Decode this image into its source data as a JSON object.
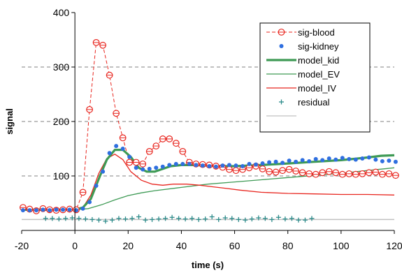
{
  "chart_data": {
    "type": "line",
    "title": "",
    "xlabel": "time (s)",
    "ylabel": "signal",
    "xlim": [
      -20,
      120
    ],
    "ylim": [
      0,
      400
    ],
    "xticks": [
      -20,
      0,
      20,
      40,
      60,
      80,
      100,
      120
    ],
    "yticks": [
      0,
      100,
      200,
      300,
      400
    ],
    "ytick_labels": [
      "",
      "100",
      "200",
      "300",
      "400"
    ],
    "grid": "horizontal dashed",
    "legend_position": "top-right",
    "series": [
      {
        "name": "sig-blood",
        "style": "dashed line with open circle markers",
        "color": "#e8251e",
        "x": [
          -19.5,
          -17,
          -14.5,
          -12,
          -9.5,
          -7,
          -4.5,
          -2,
          0.5,
          3,
          5.5,
          8,
          10.5,
          13,
          15.5,
          18,
          20.5,
          23,
          25.5,
          28,
          30.5,
          33,
          35.5,
          38,
          40.5,
          43,
          45.5,
          48,
          50.5,
          53,
          55.5,
          58,
          60.5,
          63,
          65.5,
          68,
          70.5,
          73,
          75.5,
          78,
          80.5,
          83,
          85.5,
          88,
          90.5,
          93,
          95.5,
          98,
          100.5,
          103,
          105.5,
          108,
          110.5,
          113,
          115.5,
          118,
          120.5
        ],
        "y": [
          42,
          39,
          36,
          40,
          38,
          37,
          38,
          39,
          38,
          70,
          222,
          345,
          340,
          285,
          215,
          170,
          125,
          125,
          122,
          145,
          155,
          168,
          168,
          160,
          145,
          125,
          122,
          121,
          120,
          118,
          116,
          112,
          110,
          112,
          115,
          118,
          113,
          108,
          107,
          110,
          112,
          109,
          106,
          104,
          103,
          106,
          108,
          106,
          103,
          104,
          103,
          104,
          106,
          107,
          103,
          104,
          101
        ]
      },
      {
        "name": "sig-kidney",
        "style": "filled circle markers",
        "color": "#2f6fe0",
        "x": [
          -19.5,
          -17,
          -14.5,
          -12,
          -9.5,
          -7,
          -4.5,
          -2,
          0.5,
          3,
          5.5,
          8,
          10.5,
          13,
          15.5,
          18,
          20.5,
          23,
          25.5,
          28,
          30.5,
          33,
          35.5,
          38,
          40.5,
          43,
          45.5,
          48,
          50.5,
          53,
          55.5,
          58,
          60.5,
          63,
          65.5,
          68,
          70.5,
          73,
          75.5,
          78,
          80.5,
          83,
          85.5,
          88,
          90.5,
          93,
          95.5,
          98,
          100.5,
          103,
          105.5,
          108,
          110.5,
          113,
          115.5,
          118,
          120.5
        ],
        "y": [
          37,
          37,
          37,
          38,
          37,
          38,
          38,
          38,
          37,
          40,
          52,
          82,
          108,
          142,
          155,
          150,
          135,
          115,
          112,
          113,
          115,
          117,
          120,
          122,
          122,
          122,
          120,
          119,
          118,
          117,
          119,
          120,
          119,
          118,
          122,
          121,
          123,
          125,
          126,
          124,
          128,
          126,
          129,
          127,
          131,
          129,
          132,
          130,
          133,
          131,
          130,
          132,
          134,
          130,
          127,
          128,
          126
        ]
      },
      {
        "name": "model_kid",
        "style": "thick solid line",
        "color": "#3e9a55",
        "x": [
          -20,
          -10,
          0,
          3,
          6,
          9,
          12,
          15,
          18,
          21,
          24,
          27,
          30,
          33,
          36,
          40,
          45,
          50,
          55,
          60,
          70,
          80,
          90,
          100,
          110,
          115,
          120
        ],
        "y": [
          38,
          38,
          38,
          42,
          58,
          95,
          130,
          148,
          148,
          135,
          115,
          108,
          108,
          113,
          118,
          120,
          120,
          119,
          118,
          118,
          120,
          123,
          126,
          129,
          134,
          137,
          138
        ]
      },
      {
        "name": "model_EV",
        "style": "thin solid line",
        "color": "#3e9a55",
        "x": [
          -20,
          0,
          5,
          10,
          15,
          20,
          25,
          30,
          40,
          50,
          60,
          70,
          80,
          90,
          100,
          110,
          120
        ],
        "y": [
          38,
          38,
          40,
          47,
          56,
          64,
          69,
          73,
          79,
          85,
          89,
          93,
          97,
          101,
          105,
          110,
          115
        ]
      },
      {
        "name": "model_IV",
        "style": "thin solid line",
        "color": "#e8251e",
        "x": [
          -20,
          0,
          3,
          6,
          9,
          12,
          15,
          18,
          21,
          25,
          29,
          33,
          37,
          42,
          47,
          52,
          57,
          62,
          70,
          80,
          90,
          100,
          110,
          120
        ],
        "y": [
          38,
          38,
          42,
          65,
          105,
          132,
          140,
          130,
          108,
          92,
          85,
          83,
          85,
          85,
          83,
          80,
          77,
          74,
          70,
          68,
          67,
          66,
          66,
          65
        ]
      },
      {
        "name": "residual",
        "style": "plus markers",
        "color": "#2c8b8a",
        "x": [
          -11,
          -8.5,
          -6,
          -3.5,
          -1,
          1.5,
          4,
          6.5,
          9,
          11.5,
          14,
          16.5,
          19,
          21.5,
          24,
          26.5,
          29,
          31.5,
          34,
          36.5,
          39,
          41.5,
          44,
          46.5,
          49,
          51.5,
          54,
          56.5,
          59,
          61.5,
          64,
          66.5,
          69,
          71.5,
          74,
          76.5,
          79,
          81.5,
          84,
          86.5,
          89
        ],
        "y": [
          22,
          22,
          21,
          22,
          23,
          22,
          21,
          20,
          19,
          17,
          19,
          22,
          21,
          22,
          25,
          19,
          20,
          21,
          22,
          24,
          22,
          21,
          22,
          20,
          21,
          25,
          20,
          23,
          22,
          20,
          19,
          21,
          23,
          22,
          20,
          24,
          21,
          22,
          19,
          19,
          22
        ]
      },
      {
        "name": "",
        "style": "thin solid line",
        "color": "#c0c0c0",
        "x": [
          -20,
          120
        ],
        "y": [
          20,
          20
        ]
      }
    ],
    "legend": [
      {
        "label": "sig-blood",
        "marker": "open-circle",
        "line": "dashed",
        "color": "#e8251e"
      },
      {
        "label": "sig-kidney",
        "marker": "dot",
        "line": "none",
        "color": "#2f6fe0"
      },
      {
        "label": "model_kid",
        "marker": "none",
        "line": "thick",
        "color": "#3e9a55"
      },
      {
        "label": "model_EV",
        "marker": "none",
        "line": "thin",
        "color": "#3e9a55"
      },
      {
        "label": "model_IV",
        "marker": "none",
        "line": "thin",
        "color": "#e8251e"
      },
      {
        "label": "residual",
        "marker": "plus",
        "line": "none",
        "color": "#2c8b8a"
      },
      {
        "label": "",
        "marker": "none",
        "line": "thin",
        "color": "#c0c0c0"
      }
    ]
  }
}
